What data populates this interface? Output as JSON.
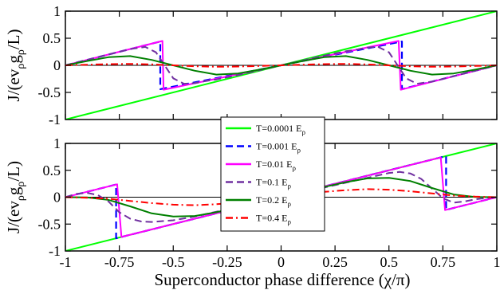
{
  "chart_data": [
    {
      "type": "line",
      "panel": "top",
      "ylabel_parts": [
        "J/(ev",
        "ρ",
        "g",
        "ρ",
        "/L)"
      ],
      "xlim": [
        -1,
        1
      ],
      "ylim": [
        -1,
        1
      ],
      "yticks": [
        -1,
        -0.5,
        0,
        0.5,
        1
      ],
      "ytick_labels": [
        "-1",
        "-0.5",
        "0",
        "0.5",
        "1"
      ],
      "zero_line": true,
      "grid": false,
      "series": [
        {
          "name": "T=0.0001 E",
          "color": "#00ff00",
          "dash": "solid",
          "width": 2,
          "x": [
            -1,
            1
          ],
          "y": [
            -1,
            1
          ]
        },
        {
          "name": "T=0.001 E",
          "color": "#0000ff",
          "dash": "dashed",
          "width": 2.2,
          "x": [
            -1,
            -0.56,
            -0.56,
            0.56,
            0.56,
            1
          ],
          "y": [
            0,
            0.44,
            -0.44,
            0.44,
            -0.44,
            0
          ]
        },
        {
          "name": "T=0.01 E",
          "color": "#ff00ff",
          "dash": "solid",
          "width": 2,
          "x": [
            -1,
            -0.55,
            -0.545,
            0.545,
            0.555,
            1
          ],
          "y": [
            0,
            0.45,
            -0.45,
            0.45,
            -0.45,
            0
          ]
        },
        {
          "name": "T=0.1 E",
          "color": "#7030a0",
          "dash": "dashed",
          "width": 2,
          "x": [
            -1,
            -0.9,
            -0.8,
            -0.7,
            -0.63,
            -0.58,
            -0.54,
            -0.5,
            -0.45,
            -0.4,
            -0.35,
            -0.3,
            -0.2,
            -0.1,
            0,
            0.1,
            0.2,
            0.3,
            0.35,
            0.4,
            0.45,
            0.5,
            0.54,
            0.58,
            0.63,
            0.7,
            0.8,
            0.9,
            1
          ],
          "y": [
            0,
            0.1,
            0.2,
            0.3,
            0.34,
            0.24,
            0.0,
            -0.24,
            -0.34,
            -0.33,
            -0.29,
            -0.26,
            -0.18,
            -0.09,
            0,
            0.09,
            0.18,
            0.26,
            0.29,
            0.33,
            0.34,
            0.24,
            0.0,
            -0.24,
            -0.34,
            -0.3,
            -0.2,
            -0.1,
            0
          ]
        },
        {
          "name": "T=0.2 E",
          "color": "#008000",
          "dash": "solid",
          "width": 2,
          "x": [
            -1,
            -0.9,
            -0.8,
            -0.7,
            -0.6,
            -0.5,
            -0.4,
            -0.3,
            -0.2,
            -0.1,
            0,
            0.1,
            0.2,
            0.3,
            0.4,
            0.5,
            0.6,
            0.7,
            0.8,
            0.9,
            1
          ],
          "y": [
            0,
            0.08,
            0.15,
            0.17,
            0.1,
            0,
            -0.1,
            -0.17,
            -0.15,
            -0.08,
            0,
            0.08,
            0.15,
            0.17,
            0.1,
            0,
            -0.1,
            -0.17,
            -0.15,
            -0.08,
            0
          ]
        },
        {
          "name": "T=0.4 E",
          "color": "#ff0000",
          "dash": "dashdot",
          "width": 2,
          "x": [
            -1,
            -0.9,
            -0.8,
            -0.7,
            -0.6,
            -0.5,
            -0.4,
            -0.3,
            -0.2,
            -0.1,
            0,
            0.1,
            0.2,
            0.3,
            0.4,
            0.5,
            0.6,
            0.7,
            0.8,
            0.9,
            1
          ],
          "y": [
            0,
            0.012,
            0.022,
            0.026,
            0.017,
            0,
            -0.017,
            -0.026,
            -0.022,
            -0.012,
            0,
            0.012,
            0.022,
            0.026,
            0.017,
            0,
            -0.017,
            -0.026,
            -0.022,
            -0.012,
            0
          ]
        }
      ]
    },
    {
      "type": "line",
      "panel": "bottom",
      "ylabel_parts": [
        "J/(ev",
        "ρ",
        "g",
        "ρ",
        "/L)"
      ],
      "xlabel": "Superconductor phase difference (χ/π)",
      "xlim": [
        -1,
        1
      ],
      "ylim": [
        -1,
        1
      ],
      "xticks": [
        -1,
        -0.75,
        -0.5,
        -0.25,
        0,
        0.25,
        0.5,
        0.75,
        1
      ],
      "xtick_labels": [
        "-1",
        "-0.75",
        "-0.5",
        "-0.25",
        "0",
        "0.25",
        "0.5",
        "0.75",
        "1"
      ],
      "yticks": [
        -1,
        -0.5,
        0,
        0.5,
        1
      ],
      "ytick_labels": [
        "-1",
        "-0.5",
        "0",
        "0.5",
        "1"
      ],
      "zero_line": true,
      "grid": false,
      "series": [
        {
          "name": "T=0.0001 E",
          "color": "#00ff00",
          "dash": "solid",
          "width": 2,
          "x": [
            -1,
            1
          ],
          "y": [
            -1,
            1
          ]
        },
        {
          "name": "T=0.001 E",
          "color": "#0000ff",
          "dash": "dashed",
          "width": 2.2,
          "x": [
            -1,
            -0.765,
            -0.765,
            0.765,
            0.765,
            1
          ],
          "y": [
            0,
            0.235,
            -0.765,
            0.765,
            -0.235,
            0
          ]
        },
        {
          "name": "T=0.01 E",
          "color": "#ff00ff",
          "dash": "solid",
          "width": 2,
          "x": [
            -1,
            -0.76,
            -0.74,
            0.74,
            0.76,
            1
          ],
          "y": [
            0,
            0.24,
            -0.74,
            0.74,
            -0.24,
            0
          ]
        },
        {
          "name": "T=0.1 E",
          "color": "#7030a0",
          "dash": "dashed",
          "width": 2,
          "x": [
            -1,
            -0.95,
            -0.9,
            -0.85,
            -0.8,
            -0.75,
            -0.7,
            -0.65,
            -0.6,
            -0.5,
            -0.4,
            -0.3,
            -0.2,
            -0.1,
            0,
            0.1,
            0.2,
            0.3,
            0.4,
            0.5,
            0.55,
            0.6,
            0.65,
            0.7,
            0.75,
            0.8,
            0.85,
            0.9,
            0.95,
            1
          ],
          "y": [
            0,
            0.06,
            0.08,
            0.04,
            -0.08,
            -0.28,
            -0.4,
            -0.45,
            -0.46,
            -0.43,
            -0.36,
            -0.27,
            -0.18,
            -0.09,
            0,
            0.09,
            0.18,
            0.27,
            0.36,
            0.45,
            0.47,
            0.44,
            0.34,
            0.16,
            -0.02,
            -0.1,
            -0.08,
            -0.04,
            -0.015,
            0
          ]
        },
        {
          "name": "T=0.2 E",
          "color": "#008000",
          "dash": "solid",
          "width": 2,
          "x": [
            -1,
            -0.9,
            -0.8,
            -0.7,
            -0.6,
            -0.5,
            -0.4,
            -0.3,
            -0.2,
            -0.1,
            0,
            0.1,
            0.2,
            0.3,
            0.4,
            0.5,
            0.6,
            0.7,
            0.8,
            0.9,
            1
          ],
          "y": [
            0,
            -0.005,
            -0.05,
            -0.17,
            -0.3,
            -0.36,
            -0.35,
            -0.28,
            -0.19,
            -0.1,
            0,
            0.1,
            0.19,
            0.28,
            0.35,
            0.36,
            0.3,
            0.17,
            0.05,
            0.005,
            0
          ]
        },
        {
          "name": "T=0.4 E",
          "color": "#ff0000",
          "dash": "dashdot",
          "width": 2,
          "x": [
            -1,
            -0.9,
            -0.8,
            -0.7,
            -0.6,
            -0.5,
            -0.4,
            -0.3,
            -0.2,
            -0.1,
            0,
            0.1,
            0.2,
            0.3,
            0.4,
            0.5,
            0.6,
            0.7,
            0.8,
            0.9,
            1
          ],
          "y": [
            0,
            -0.01,
            -0.03,
            -0.07,
            -0.11,
            -0.14,
            -0.15,
            -0.13,
            -0.1,
            -0.05,
            0,
            0.05,
            0.1,
            0.13,
            0.15,
            0.14,
            0.11,
            0.07,
            0.03,
            0.01,
            0
          ]
        }
      ]
    }
  ],
  "legend": {
    "placement": "center",
    "subscript": "ρ",
    "entries": [
      {
        "label": "T=0.0001 E",
        "color": "#00ff00",
        "dash": "solid"
      },
      {
        "label": "T=0.001 E",
        "color": "#0000ff",
        "dash": "dashed"
      },
      {
        "label": "T=0.01 E",
        "color": "#ff00ff",
        "dash": "solid"
      },
      {
        "label": "T=0.1 E",
        "color": "#7030a0",
        "dash": "dashed"
      },
      {
        "label": "T=0.2 E",
        "color": "#008000",
        "dash": "solid"
      },
      {
        "label": "T=0.4 E",
        "color": "#ff0000",
        "dash": "dashdot"
      }
    ]
  }
}
